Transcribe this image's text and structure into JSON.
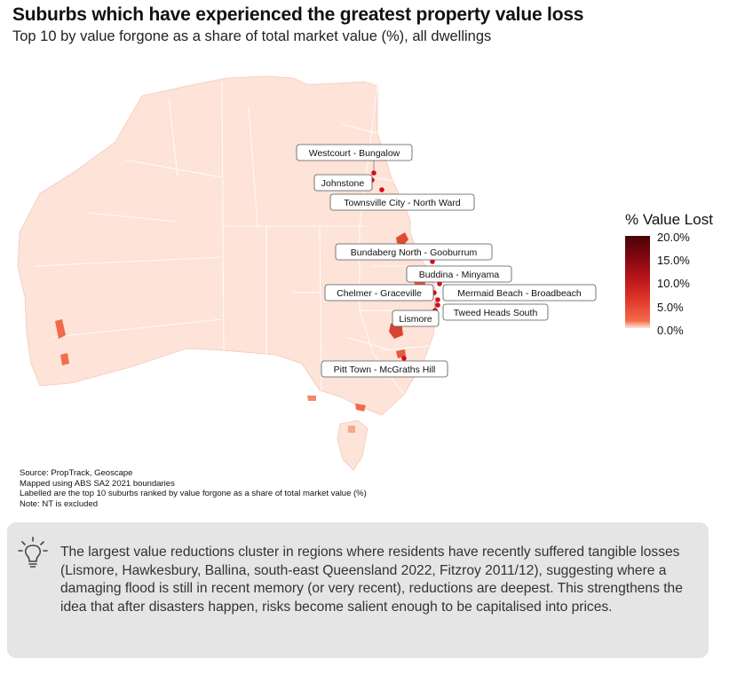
{
  "header": {
    "title": "Suburbs which have experienced the greatest property value loss",
    "subtitle": "Top 10 by value forgone as a share of total market value (%), all dwellings"
  },
  "map": {
    "region": "Australia",
    "fill_base_color": "#fde3d8",
    "border_color": "#ffffff",
    "labels": [
      "Westcourt - Bungalow",
      "Johnstone",
      "Townsville City - North Ward",
      "Bundaberg North - Gooburrum",
      "Buddina - Minyama",
      "Chelmer - Graceville",
      "Mermaid Beach - Broadbeach",
      "Tweed Heads South",
      "Lismore",
      "Pitt Town - McGraths Hill"
    ]
  },
  "legend": {
    "title": "% Value Lost",
    "ticks": [
      "20.0%",
      "15.0%",
      "10.0%",
      "5.0%",
      "0.0%"
    ],
    "colors": [
      "#4a0208",
      "#b8141a",
      "#f56a4a",
      "#fde5da"
    ]
  },
  "notes": [
    "Source: PropTrack, Geoscape",
    "Mapped using ABS SA2 2021 boundaries",
    "Labelled are the top 10 suburbs ranked by value forgone as a share of total market value (%)",
    "Note: NT is excluded"
  ],
  "callout": {
    "icon": "lightbulb-icon",
    "text": "The largest value reductions cluster in regions where residents have recently suffered tangible losses (Lismore, Hawkesbury, Ballina, south-east Queensland 2022, Fitzroy 2011/12), suggesting where a damaging flood is still in recent memory (or very recent), reductions are deepest. This strengthens the idea that after disasters happen, risks become salient enough to be capitalised into prices."
  }
}
